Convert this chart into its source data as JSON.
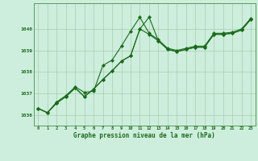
{
  "x": [
    0,
    1,
    2,
    3,
    4,
    5,
    6,
    7,
    8,
    9,
    10,
    11,
    12,
    13,
    14,
    15,
    16,
    17,
    18,
    19,
    20,
    21,
    22,
    23
  ],
  "line1": [
    1036.3,
    1036.1,
    1036.6,
    1036.9,
    1037.3,
    1037.05,
    1037.1,
    1038.3,
    1038.55,
    1039.2,
    1039.9,
    1040.55,
    1039.8,
    1039.5,
    1039.1,
    1039.0,
    1039.1,
    1039.2,
    1039.2,
    1039.8,
    1039.8,
    1039.85,
    1040.0,
    1040.5
  ],
  "line2": [
    1036.3,
    1036.1,
    1036.55,
    1036.85,
    1037.25,
    1036.85,
    1037.2,
    1037.65,
    1038.05,
    1038.5,
    1038.75,
    1040.0,
    1039.75,
    1039.45,
    1039.05,
    1038.95,
    1039.05,
    1039.15,
    1039.15,
    1039.75,
    1039.75,
    1039.8,
    1039.95,
    1040.45
  ],
  "line3": [
    1036.3,
    1036.1,
    1036.55,
    1036.85,
    1037.25,
    1036.85,
    1037.2,
    1037.65,
    1038.05,
    1038.5,
    1038.75,
    1040.0,
    1040.55,
    1039.45,
    1039.05,
    1038.95,
    1039.05,
    1039.15,
    1039.15,
    1039.75,
    1039.75,
    1039.8,
    1039.95,
    1040.45
  ],
  "bg_color": "#cdeedd",
  "line_color": "#1a6b1a",
  "grid_color": "#aaccaa",
  "border_color": "#5a9a5a",
  "xlabel": "Graphe pression niveau de la mer (hPa)",
  "ylim": [
    1035.5,
    1041.2
  ],
  "yticks": [
    1036,
    1037,
    1038,
    1039,
    1040
  ],
  "xticks": [
    0,
    1,
    2,
    3,
    4,
    5,
    6,
    7,
    8,
    9,
    10,
    11,
    12,
    13,
    14,
    15,
    16,
    17,
    18,
    19,
    20,
    21,
    22,
    23
  ],
  "figsize": [
    3.2,
    2.0
  ],
  "dpi": 100
}
